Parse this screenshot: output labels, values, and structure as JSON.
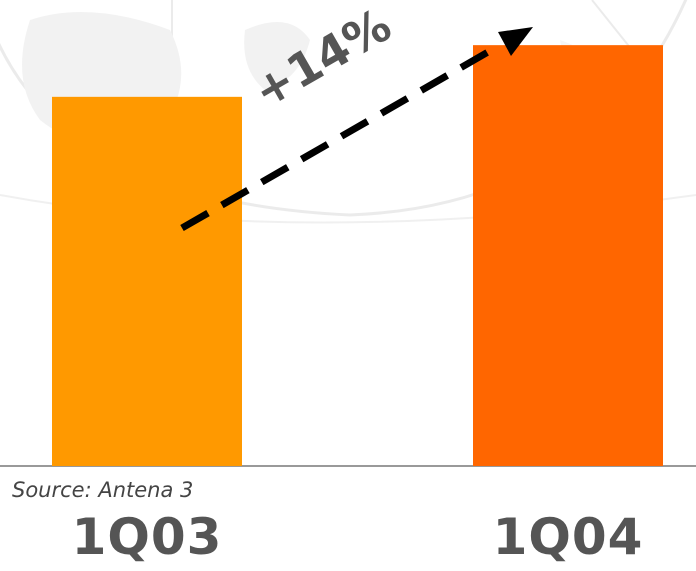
{
  "chart_data": {
    "type": "bar",
    "categories": [
      "1Q03",
      "1Q04"
    ],
    "values": [
      100,
      114
    ],
    "ylim": [
      0,
      120
    ],
    "annotation": "+14%",
    "source": "Source: Antena 3",
    "grid": false,
    "colors": [
      "#FF9900",
      "#FF6600"
    ]
  }
}
